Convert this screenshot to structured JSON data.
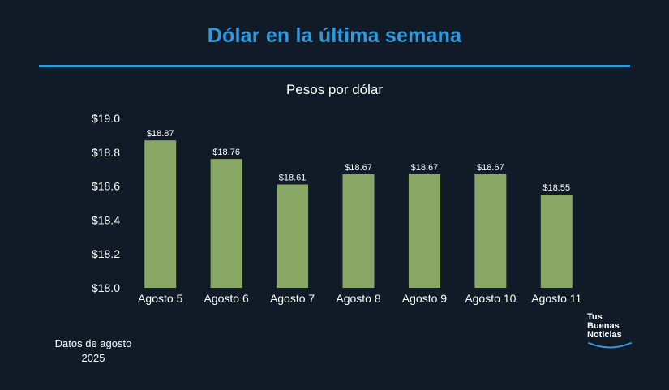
{
  "header": {
    "title": "Dólar en la última semana"
  },
  "chart_data": {
    "type": "bar",
    "title": "Pesos por dólar",
    "xlabel": "",
    "ylabel": "",
    "categories": [
      "Agosto 5",
      "Agosto 6",
      "Agosto 7",
      "Agosto 8",
      "Agosto 9",
      "Agosto 10",
      "Agosto 11"
    ],
    "values": [
      18.87,
      18.76,
      18.61,
      18.67,
      18.67,
      18.67,
      18.55
    ],
    "data_labels": [
      "$18.87",
      "$18.76",
      "$18.61",
      "$18.67",
      "$18.67",
      "$18.67",
      "$18.55"
    ],
    "ylim": [
      18.0,
      19.0
    ],
    "yticks": [
      18.0,
      18.2,
      18.4,
      18.6,
      18.8,
      19.0
    ],
    "ytick_labels": [
      "$18.0",
      "$18.2",
      "$18.4",
      "$18.6",
      "$18.8",
      "$19.0"
    ],
    "grid": false,
    "bar_color": "#8aa865"
  },
  "footer": {
    "note_line1": "Datos de agosto",
    "note_line2": "2025"
  },
  "logo": {
    "line1": "Tus",
    "line2": "Buenas",
    "line3": "Noticias",
    "accent_color": "#2d9be0"
  }
}
